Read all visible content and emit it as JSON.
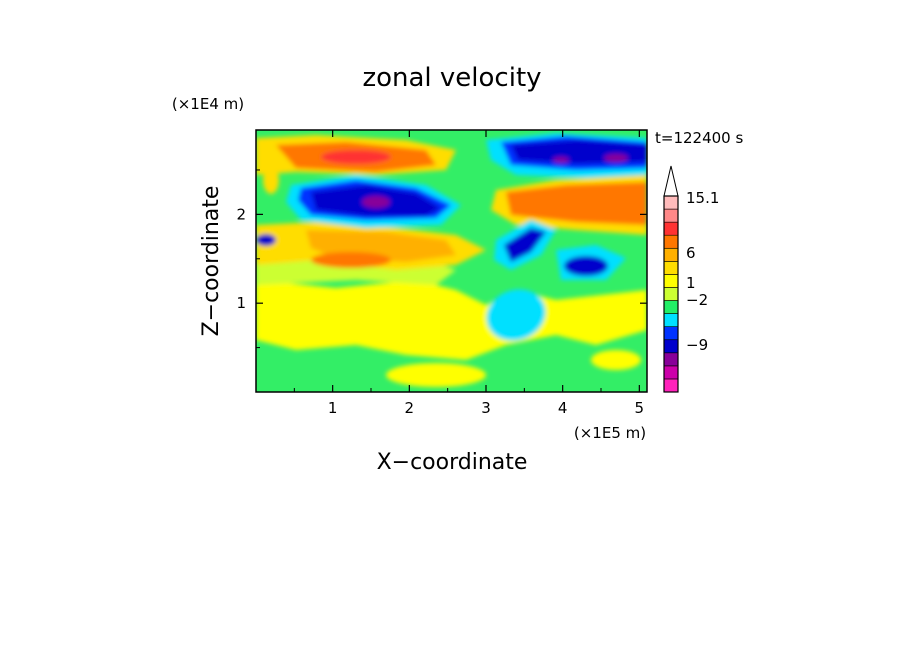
{
  "chart_data": {
    "type": "heatmap",
    "title": "zonal velocity",
    "xlabel": "X−coordinate",
    "ylabel": "Z−coordinate",
    "x_scale_label": "(×1E5 m)",
    "y_scale_label": "(×1E4 m)",
    "time_label": "t=122400 s",
    "xlim": [
      0,
      5.1
    ],
    "ylim": [
      0,
      2.95
    ],
    "x_ticks": [
      1,
      2,
      3,
      4,
      5
    ],
    "y_ticks": [
      1,
      2
    ],
    "colorbar": {
      "colors": [
        "#ff22bb",
        "#cc00aa",
        "#880099",
        "#0000cc",
        "#0033ff",
        "#00e0ff",
        "#22ee66",
        "#ccff33",
        "#ffff00",
        "#ffdd00",
        "#ffb000",
        "#ff7700",
        "#ff3333",
        "#ff8888",
        "#ffbbbb"
      ],
      "tick_labels": [
        {
          "value": 15.1,
          "label": "15.1"
        },
        {
          "value": 6,
          "label": "6"
        },
        {
          "value": 1,
          "label": "1"
        },
        {
          "value": -2,
          "label": "−2"
        },
        {
          "value": -9,
          "label": "−9"
        }
      ],
      "extend": "max"
    }
  }
}
